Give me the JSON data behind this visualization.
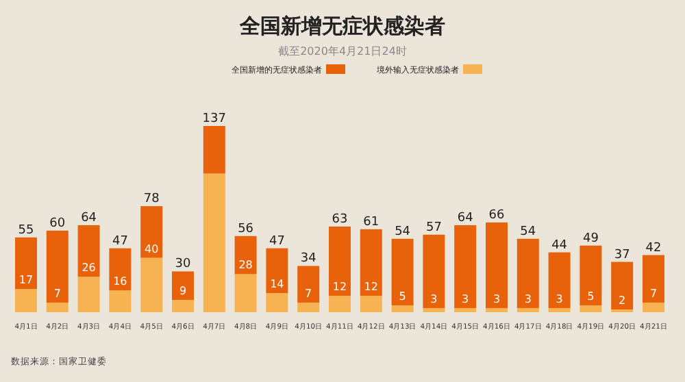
{
  "chart_data": {
    "type": "bar",
    "stacked": true,
    "title": "全国新增无症状感染者",
    "subtitle": "截至2020年4月21日24时",
    "legend": "top",
    "categories": [
      "4月1日",
      "4月2日",
      "4月3日",
      "4月4日",
      "4月5日",
      "4月6日",
      "4月7日",
      "4月8日",
      "4月9日",
      "4月10日",
      "4月11日",
      "4月12日",
      "4月13日",
      "4月14日",
      "4月15日",
      "4月16日",
      "4月17日",
      "4月18日",
      "4月19日",
      "4月20日",
      "4月21日"
    ],
    "series": [
      {
        "name": "境外输入无症状感染者",
        "color": "#f7b352",
        "values": [
          17,
          7,
          26,
          16,
          40,
          9,
          102,
          28,
          14,
          7,
          12,
          12,
          5,
          3,
          3,
          3,
          3,
          3,
          5,
          2,
          7
        ],
        "value_labels": [
          "17",
          "7",
          "26",
          "16",
          "40",
          "9",
          null,
          "28",
          "14",
          "7",
          "12",
          "12",
          "5",
          "3",
          "3",
          "3",
          "3",
          "3",
          "5",
          "2",
          "7"
        ]
      },
      {
        "name": "全国新增的无症状感染者",
        "color": "#e8620c",
        "values": [
          38,
          53,
          38,
          31,
          38,
          21,
          35,
          28,
          33,
          27,
          51,
          49,
          49,
          54,
          61,
          63,
          51,
          41,
          44,
          35,
          35
        ]
      }
    ],
    "totals": [
      "55",
      "60",
      "64",
      "47",
      "78",
      "30",
      "137",
      "56",
      "47",
      "34",
      "63",
      "61",
      "54",
      "57",
      "64",
      "66",
      "54",
      "44",
      "49",
      "37",
      "42"
    ],
    "annotations": [
      "数据来源：国家卫健委"
    ]
  }
}
